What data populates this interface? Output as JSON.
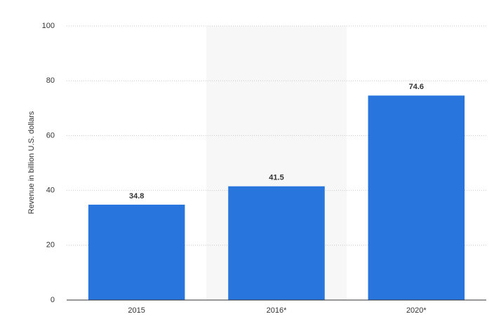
{
  "chart_data": {
    "type": "bar",
    "y_label": "Revenue in billion U.S. dollars",
    "categories": [
      "2015",
      "2016*",
      "2020*"
    ],
    "values": [
      34.8,
      41.5,
      74.6
    ],
    "color": "#2876dd",
    "ylim": [
      0,
      100
    ],
    "yticks": [
      0,
      20,
      40,
      60,
      80,
      100
    ],
    "grid": true
  }
}
